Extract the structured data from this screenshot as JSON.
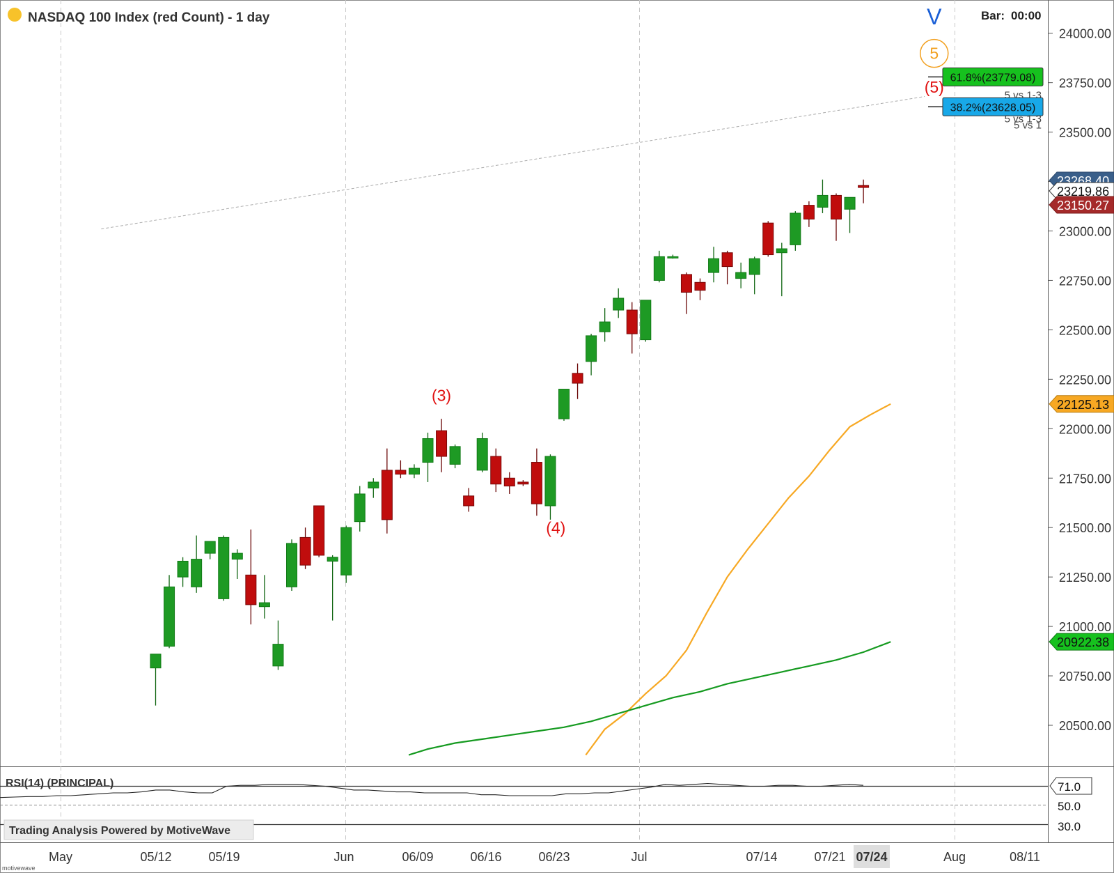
{
  "header": {
    "title": "NASDAQ 100 Index (red Count) - 1 day",
    "bar_label": "Bar:",
    "bar_value": "00:00"
  },
  "footer": {
    "branding": "Trading Analysis Powered by MotiveWave",
    "corner_label": "motivewave"
  },
  "colors": {
    "up": "#1e9a24",
    "down": "#c00d0d",
    "ma_fast": "#f7a823",
    "ma_slow": "#159a20",
    "wave_red": "#e01010",
    "wave_orange": "#f2a020",
    "wave_blue": "#1a5fd6",
    "fib_green": "#16c11e",
    "fib_blue": "#18a8e8",
    "price_current_bg": "#ffffff",
    "price_low_bg": "#a52a2a",
    "price_high_bg": "#3a5f8a"
  },
  "chart_data": {
    "type": "candlestick",
    "symbol": "NASDAQ 100 Index",
    "ylim": [
      20350,
      24150
    ],
    "yticks": [
      "24000.00",
      "23750.00",
      "23500.00",
      "23250.00",
      "23000.00",
      "22750.00",
      "22500.00",
      "22250.00",
      "22000.00",
      "21750.00",
      "21500.00",
      "21250.00",
      "21000.00",
      "20750.00",
      "20500.00"
    ],
    "xticks": [
      "May",
      "05/12",
      "05/19",
      "Jun",
      "06/09",
      "06/16",
      "06/23",
      "Jul",
      "07/14",
      "07/21",
      "07/24",
      "Aug",
      "08/11"
    ],
    "candles": [
      {
        "o": 20790,
        "h": 20860,
        "l": 20600,
        "c": 20860
      },
      {
        "o": 20900,
        "h": 21260,
        "l": 20890,
        "c": 21200
      },
      {
        "o": 21250,
        "h": 21350,
        "l": 21200,
        "c": 21330
      },
      {
        "o": 21200,
        "h": 21460,
        "l": 21170,
        "c": 21340
      },
      {
        "o": 21370,
        "h": 21430,
        "l": 21340,
        "c": 21430
      },
      {
        "o": 21140,
        "h": 21460,
        "l": 21130,
        "c": 21450
      },
      {
        "o": 21340,
        "h": 21390,
        "l": 21240,
        "c": 21370
      },
      {
        "o": 21260,
        "h": 21490,
        "l": 21010,
        "c": 21110
      },
      {
        "o": 21100,
        "h": 21260,
        "l": 21040,
        "c": 21120
      },
      {
        "o": 20800,
        "h": 21030,
        "l": 20780,
        "c": 20910
      },
      {
        "o": 21200,
        "h": 21440,
        "l": 21180,
        "c": 21420
      },
      {
        "o": 21450,
        "h": 21500,
        "l": 21290,
        "c": 21310
      },
      {
        "o": 21610,
        "h": 21610,
        "l": 21350,
        "c": 21360
      },
      {
        "o": 21330,
        "h": 21360,
        "l": 21030,
        "c": 21350
      },
      {
        "o": 21260,
        "h": 21510,
        "l": 21220,
        "c": 21500
      },
      {
        "o": 21530,
        "h": 21710,
        "l": 21480,
        "c": 21670
      },
      {
        "o": 21700,
        "h": 21750,
        "l": 21650,
        "c": 21730
      },
      {
        "o": 21790,
        "h": 21900,
        "l": 21470,
        "c": 21540
      },
      {
        "o": 21790,
        "h": 21840,
        "l": 21750,
        "c": 21770
      },
      {
        "o": 21770,
        "h": 21820,
        "l": 21750,
        "c": 21800
      },
      {
        "o": 21830,
        "h": 21980,
        "l": 21730,
        "c": 21950
      },
      {
        "o": 21990,
        "h": 22050,
        "l": 21780,
        "c": 21860
      },
      {
        "o": 21820,
        "h": 21920,
        "l": 21800,
        "c": 21910
      },
      {
        "o": 21660,
        "h": 21700,
        "l": 21580,
        "c": 21610
      },
      {
        "o": 21790,
        "h": 21980,
        "l": 21780,
        "c": 21950
      },
      {
        "o": 21860,
        "h": 21900,
        "l": 21680,
        "c": 21720
      },
      {
        "o": 21750,
        "h": 21780,
        "l": 21670,
        "c": 21710
      },
      {
        "o": 21730,
        "h": 21740,
        "l": 21710,
        "c": 21720
      },
      {
        "o": 21830,
        "h": 21900,
        "l": 21560,
        "c": 21620
      },
      {
        "o": 21610,
        "h": 21870,
        "l": 21540,
        "c": 21860
      },
      {
        "o": 22050,
        "h": 22200,
        "l": 22040,
        "c": 22200
      },
      {
        "o": 22280,
        "h": 22330,
        "l": 22150,
        "c": 22230
      },
      {
        "o": 22340,
        "h": 22480,
        "l": 22270,
        "c": 22470
      },
      {
        "o": 22490,
        "h": 22610,
        "l": 22440,
        "c": 22540
      },
      {
        "o": 22600,
        "h": 22710,
        "l": 22560,
        "c": 22660
      },
      {
        "o": 22600,
        "h": 22640,
        "l": 22380,
        "c": 22480
      },
      {
        "o": 22450,
        "h": 22650,
        "l": 22440,
        "c": 22650
      },
      {
        "o": 22750,
        "h": 22900,
        "l": 22740,
        "c": 22870
      },
      {
        "o": 22870,
        "h": 22880,
        "l": 22860,
        "c": 22870
      },
      {
        "o": 22780,
        "h": 22790,
        "l": 22580,
        "c": 22690
      },
      {
        "o": 22740,
        "h": 22760,
        "l": 22650,
        "c": 22700
      },
      {
        "o": 22790,
        "h": 22920,
        "l": 22740,
        "c": 22860
      },
      {
        "o": 22890,
        "h": 22900,
        "l": 22730,
        "c": 22820
      },
      {
        "o": 22760,
        "h": 22840,
        "l": 22710,
        "c": 22790
      },
      {
        "o": 22780,
        "h": 22870,
        "l": 22680,
        "c": 22860
      },
      {
        "o": 23040,
        "h": 23050,
        "l": 22870,
        "c": 22880
      },
      {
        "o": 22890,
        "h": 22940,
        "l": 22670,
        "c": 22910
      },
      {
        "o": 22930,
        "h": 23100,
        "l": 22900,
        "c": 23090
      },
      {
        "o": 23130,
        "h": 23150,
        "l": 23020,
        "c": 23060
      },
      {
        "o": 23120,
        "h": 23260,
        "l": 23090,
        "c": 23180
      },
      {
        "o": 23180,
        "h": 23190,
        "l": 22950,
        "c": 23060
      },
      {
        "o": 23110,
        "h": 23170,
        "l": 22990,
        "c": 23170
      },
      {
        "o": 23230,
        "h": 23260,
        "l": 23140,
        "c": 23220
      }
    ],
    "ma_fast": {
      "name": "",
      "points": [
        [
          31.6,
          20350
        ],
        [
          33,
          20480
        ],
        [
          34.5,
          20560
        ],
        [
          36,
          20660
        ],
        [
          37.5,
          20750
        ],
        [
          39,
          20880
        ],
        [
          40.5,
          21070
        ],
        [
          42,
          21250
        ],
        [
          43.5,
          21390
        ],
        [
          45,
          21520
        ],
        [
          46.5,
          21650
        ],
        [
          48,
          21760
        ],
        [
          49.5,
          21890
        ],
        [
          51,
          22010
        ],
        [
          52.5,
          22070
        ],
        [
          54,
          22125
        ]
      ]
    },
    "ma_slow": {
      "name": "",
      "points": [
        [
          18.6,
          20350
        ],
        [
          20,
          20380
        ],
        [
          22,
          20410
        ],
        [
          24,
          20430
        ],
        [
          26,
          20450
        ],
        [
          28,
          20470
        ],
        [
          30,
          20490
        ],
        [
          32,
          20520
        ],
        [
          34,
          20560
        ],
        [
          36,
          20600
        ],
        [
          38,
          20640
        ],
        [
          40,
          20670
        ],
        [
          42,
          20710
        ],
        [
          44,
          20740
        ],
        [
          46,
          20770
        ],
        [
          48,
          20800
        ],
        [
          50,
          20830
        ],
        [
          52,
          20870
        ],
        [
          54,
          20922
        ]
      ]
    },
    "trend_line": {
      "from": [
        -4,
        23010
      ],
      "to": [
        56.5,
        23680
      ]
    },
    "wave_labels": [
      {
        "text": "(3)",
        "color": "wave_red",
        "bar": 21,
        "price": 22140
      },
      {
        "text": "(4)",
        "color": "wave_red",
        "bar": 29.4,
        "price": 21470
      },
      {
        "text": "(5)",
        "color": "wave_red",
        "bar": 57.2,
        "price": 23700
      },
      {
        "text": "5",
        "color": "wave_orange",
        "bar": 57.2,
        "price": 23870,
        "circled": true
      },
      {
        "text": "V",
        "color": "wave_blue",
        "bar": 57.2,
        "price": 24045
      }
    ],
    "fib_levels": [
      {
        "label": "61.8%(23779.08)",
        "price": 23779.08,
        "color": "fib_green",
        "note": "5 vs 1-3"
      },
      {
        "label": "38.2%(23628.05)",
        "price": 23628.05,
        "color": "fib_blue",
        "note": "5 vs 1"
      }
    ],
    "fib_overlap_note": "5 vs 1-3",
    "price_tags": [
      {
        "label": "23268.40",
        "price": 23268.4,
        "style": "high"
      },
      {
        "label": "23219.86",
        "price": 23219.86,
        "style": "current"
      },
      {
        "label": "23150.27",
        "price": 23150.27,
        "style": "low"
      },
      {
        "label": "22125.13",
        "price": 22125.13,
        "style": "ma_fast"
      },
      {
        "label": "20922.38",
        "price": 20922.38,
        "style": "ma_slow"
      }
    ],
    "rsi": {
      "label": "RSI(14) (PRINCIPAL)",
      "current": "71.0",
      "levels": [
        "50.0",
        "30.0"
      ],
      "values": [
        58,
        58.5,
        59,
        59,
        60,
        60,
        61,
        62,
        63,
        63,
        64,
        66,
        66,
        64,
        63,
        63,
        70,
        71,
        71,
        72,
        72,
        72,
        71,
        70,
        68,
        66,
        66,
        65,
        64,
        64,
        63,
        63,
        63,
        63,
        61,
        61,
        60,
        60,
        60,
        60,
        62,
        62,
        63,
        63,
        65,
        67,
        69,
        72,
        71,
        72,
        73,
        72,
        71,
        70,
        70,
        71,
        71,
        70,
        70,
        71,
        72,
        71
      ]
    }
  }
}
